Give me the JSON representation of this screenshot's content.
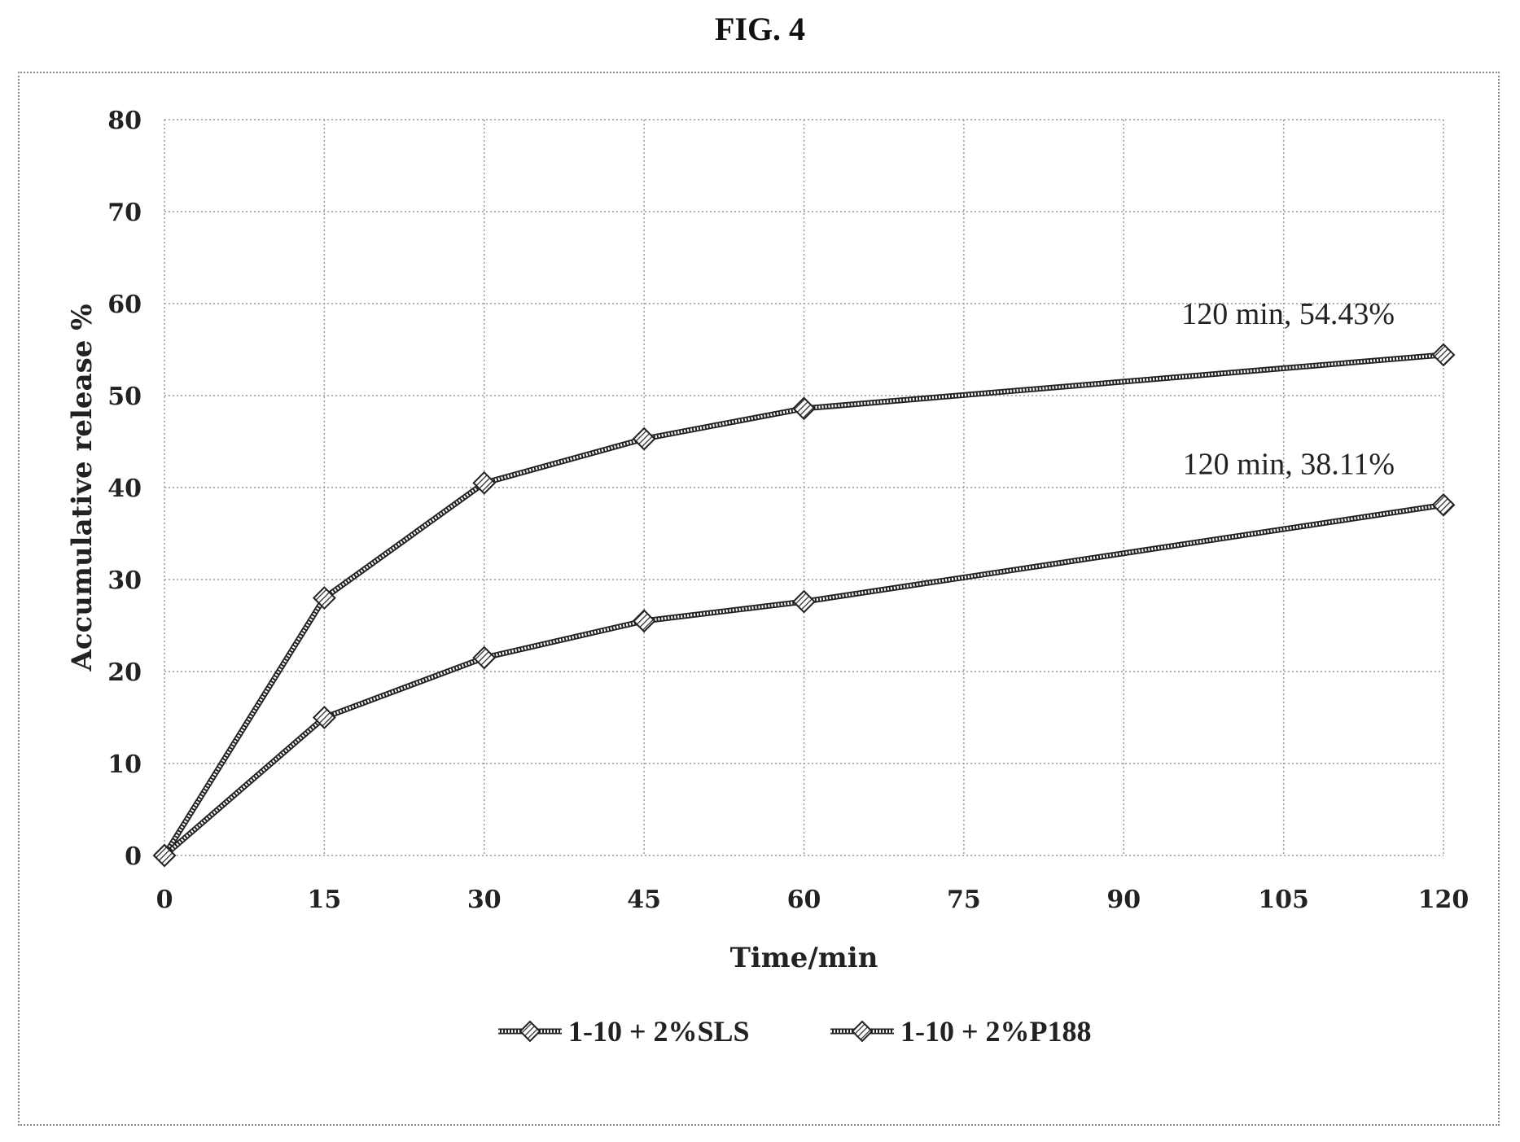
{
  "figure": {
    "title": "FIG. 4"
  },
  "chart_data": {
    "type": "line",
    "x": [
      0,
      15,
      30,
      45,
      60,
      120
    ],
    "xticks": [
      0,
      15,
      30,
      45,
      60,
      75,
      90,
      105,
      120
    ],
    "yticks": [
      0,
      10,
      20,
      30,
      40,
      50,
      60,
      70,
      80
    ],
    "xlim": [
      0,
      120
    ],
    "ylim": [
      0,
      80
    ],
    "xlabel": "Time/min",
    "ylabel": "Accumulative release %",
    "grid": true,
    "legend_position": "bottom",
    "series": [
      {
        "name": "1-10 + 2%SLS",
        "values": [
          0,
          28,
          40.5,
          45.3,
          48.6,
          54.43
        ]
      },
      {
        "name": "1-10 + 2%P188",
        "values": [
          0,
          15,
          21.5,
          25.5,
          27.6,
          38.11
        ]
      }
    ],
    "annotations": [
      {
        "text": "120 min, 54.43%",
        "x": 120,
        "y": 54.43
      },
      {
        "text": "120 min, 38.11%",
        "x": 120,
        "y": 38.11
      }
    ]
  }
}
